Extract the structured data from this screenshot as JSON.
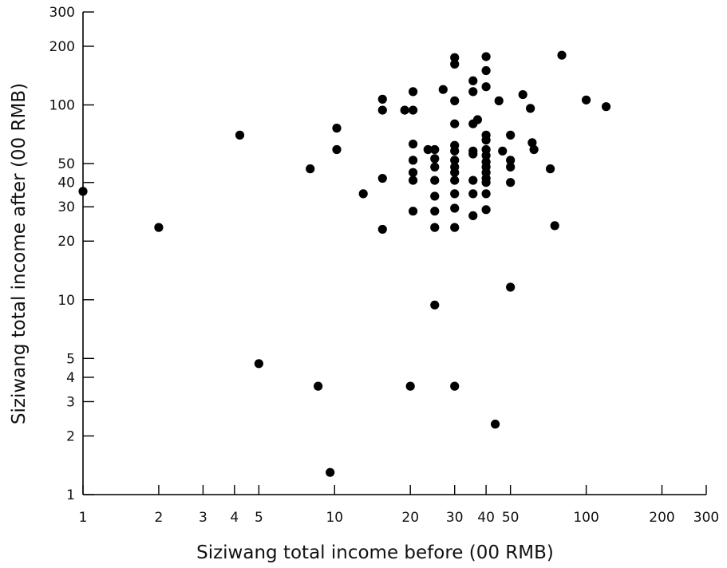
{
  "chart_data": {
    "type": "scatter",
    "title": "",
    "xlabel": "Siziwang total income before (00 RMB)",
    "ylabel": "Siziwang total income after (00 RMB)",
    "xscale": "log",
    "yscale": "log",
    "xlim": [
      1,
      300
    ],
    "ylim": [
      1,
      300
    ],
    "grid": false,
    "legend": "none",
    "marker_color": "#000000",
    "xticks": [
      1,
      2,
      3,
      4,
      5,
      10,
      20,
      30,
      40,
      50,
      100,
      200,
      300
    ],
    "xtick_labels": [
      "1",
      "2",
      "3",
      "4",
      "5",
      "10",
      "20",
      "30",
      "40",
      "50",
      "100",
      "200",
      "300"
    ],
    "yticks": [
      1,
      2,
      3,
      4,
      5,
      10,
      20,
      30,
      40,
      50,
      100,
      200,
      300
    ],
    "ytick_labels": [
      "1",
      "2",
      "3",
      "4",
      "5",
      "10",
      "20",
      "30",
      "40",
      "50",
      "100",
      "200",
      "300"
    ],
    "points": [
      [
        1.0,
        36
      ],
      [
        2.0,
        23.5
      ],
      [
        4.2,
        70
      ],
      [
        5.0,
        4.7
      ],
      [
        8.0,
        47
      ],
      [
        8.6,
        3.6
      ],
      [
        9.6,
        1.3
      ],
      [
        10.2,
        76
      ],
      [
        10.2,
        59
      ],
      [
        13.0,
        35
      ],
      [
        15.5,
        107
      ],
      [
        15.5,
        94
      ],
      [
        15.5,
        42
      ],
      [
        15.5,
        23
      ],
      [
        19.0,
        94
      ],
      [
        20.0,
        3.6
      ],
      [
        20.5,
        117
      ],
      [
        20.5,
        94
      ],
      [
        20.5,
        63
      ],
      [
        20.5,
        52
      ],
      [
        20.5,
        45
      ],
      [
        20.5,
        41
      ],
      [
        20.5,
        28.5
      ],
      [
        23.5,
        59
      ],
      [
        25.0,
        59
      ],
      [
        25.0,
        53
      ],
      [
        25.0,
        48
      ],
      [
        25.0,
        41
      ],
      [
        25.0,
        34
      ],
      [
        25.0,
        28.5
      ],
      [
        25.0,
        23.5
      ],
      [
        25.0,
        9.4
      ],
      [
        27.0,
        120
      ],
      [
        30.0,
        175
      ],
      [
        30.0,
        162
      ],
      [
        30.0,
        105
      ],
      [
        30.0,
        80
      ],
      [
        30.0,
        62
      ],
      [
        30.0,
        58
      ],
      [
        30.0,
        52
      ],
      [
        30.0,
        48
      ],
      [
        30.0,
        45
      ],
      [
        30.0,
        41
      ],
      [
        30.0,
        35
      ],
      [
        30.0,
        29.5
      ],
      [
        30.0,
        23.5
      ],
      [
        30.0,
        3.6
      ],
      [
        35.5,
        133
      ],
      [
        35.5,
        117
      ],
      [
        35.5,
        80
      ],
      [
        35.5,
        58
      ],
      [
        35.5,
        56
      ],
      [
        35.5,
        41
      ],
      [
        35.5,
        35
      ],
      [
        35.5,
        27
      ],
      [
        37.0,
        84
      ],
      [
        40.0,
        177
      ],
      [
        40.0,
        150
      ],
      [
        40.0,
        124
      ],
      [
        40.0,
        70
      ],
      [
        40.0,
        66
      ],
      [
        40.0,
        59
      ],
      [
        40.0,
        55
      ],
      [
        40.0,
        51
      ],
      [
        40.0,
        48
      ],
      [
        40.0,
        45
      ],
      [
        40.0,
        42
      ],
      [
        40.0,
        40
      ],
      [
        40.0,
        35
      ],
      [
        40.0,
        29
      ],
      [
        43.5,
        2.3
      ],
      [
        45.0,
        105
      ],
      [
        46.5,
        58
      ],
      [
        50.0,
        70
      ],
      [
        50.0,
        52
      ],
      [
        50.0,
        48
      ],
      [
        50.0,
        40
      ],
      [
        50.0,
        11.6
      ],
      [
        56.0,
        113
      ],
      [
        60.0,
        96
      ],
      [
        61.0,
        64
      ],
      [
        62.0,
        59
      ],
      [
        72.0,
        47
      ],
      [
        75.0,
        24
      ],
      [
        80.0,
        180
      ],
      [
        100.0,
        106
      ],
      [
        120.0,
        98
      ]
    ]
  }
}
